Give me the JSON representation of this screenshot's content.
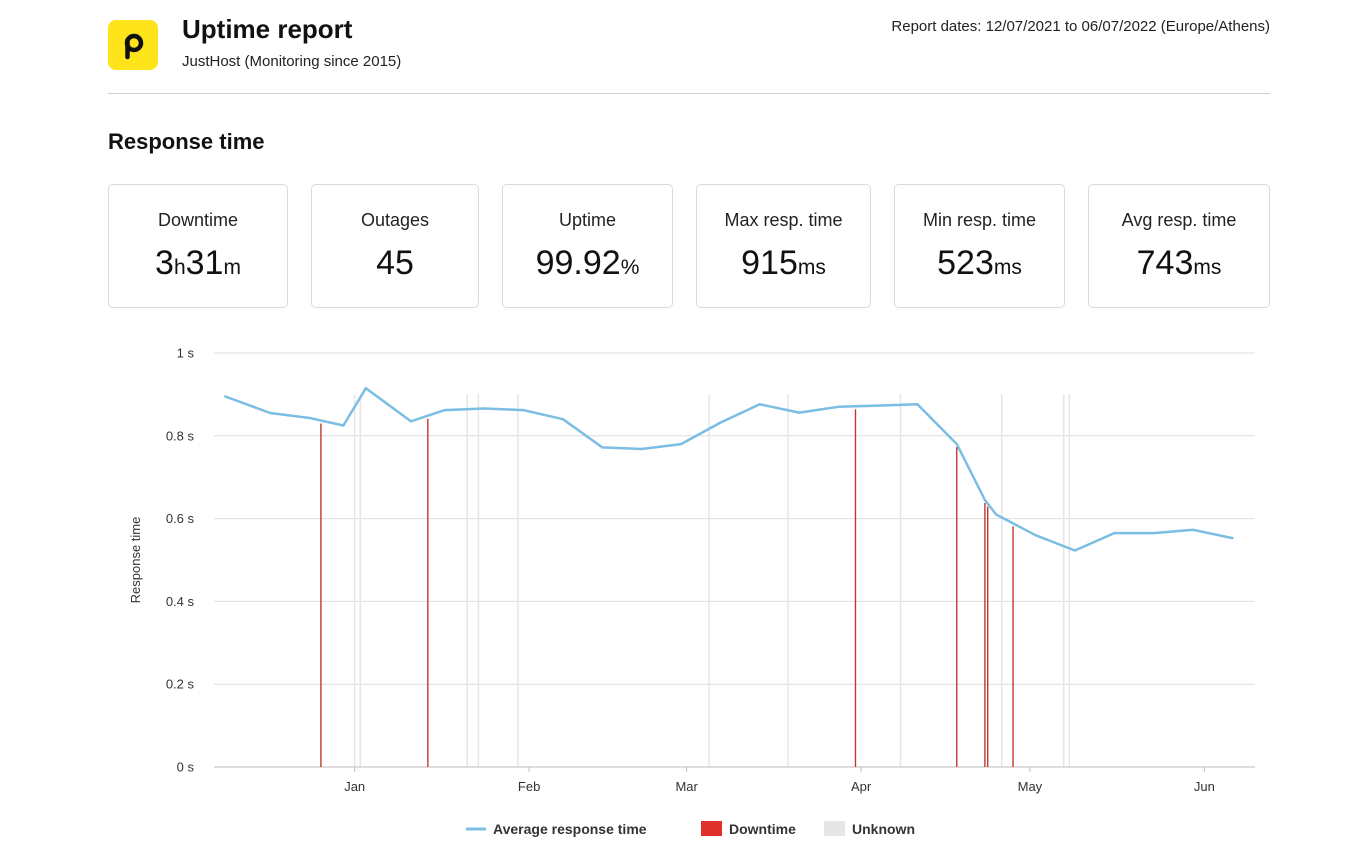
{
  "header": {
    "title": "Uptime report",
    "subtitle": "JustHost (Monitoring since 2015)",
    "report_dates": "Report dates: 12/07/2021 to 06/07/2022 (Europe/Athens)",
    "logo_letter": "p",
    "logo_color": "#ffe41c"
  },
  "section": {
    "title": "Response time"
  },
  "stats": [
    {
      "label": "Downtime",
      "value_parts": [
        [
          "3",
          "big"
        ],
        [
          "h",
          "unit"
        ],
        [
          "31",
          "big"
        ],
        [
          "m",
          "unit"
        ]
      ]
    },
    {
      "label": "Outages",
      "value_parts": [
        [
          "45",
          "big"
        ]
      ]
    },
    {
      "label": "Uptime",
      "value_parts": [
        [
          "99.92",
          "big"
        ],
        [
          "%",
          "unit"
        ]
      ]
    },
    {
      "label": "Max resp. time",
      "value_parts": [
        [
          "915",
          "big"
        ],
        [
          "ms",
          "unit"
        ]
      ]
    },
    {
      "label": "Min resp. time",
      "value_parts": [
        [
          "523",
          "big"
        ],
        [
          "ms",
          "unit"
        ]
      ]
    },
    {
      "label": "Avg resp. time",
      "value_parts": [
        [
          "743",
          "big"
        ],
        [
          "ms",
          "unit"
        ]
      ]
    }
  ],
  "chart_data": {
    "type": "line",
    "ylabel": "Response time",
    "ylim": [
      0,
      1
    ],
    "y_ticks": [
      {
        "value": 0,
        "label": "0 s"
      },
      {
        "value": 0.2,
        "label": "0.2 s"
      },
      {
        "value": 0.4,
        "label": "0.4 s"
      },
      {
        "value": 0.6,
        "label": "0.6 s"
      },
      {
        "value": 0.8,
        "label": "0.8 s"
      },
      {
        "value": 1.0,
        "label": "1 s"
      }
    ],
    "xlim": [
      "2021-12-07",
      "2022-06-10"
    ],
    "x_ticks": [
      {
        "date": "2022-01-01",
        "label": "Jan"
      },
      {
        "date": "2022-02-01",
        "label": "Feb"
      },
      {
        "date": "2022-03-01",
        "label": "Mar"
      },
      {
        "date": "2022-04-01",
        "label": "Apr"
      },
      {
        "date": "2022-05-01",
        "label": "May"
      },
      {
        "date": "2022-06-01",
        "label": "Jun"
      }
    ],
    "grid": true,
    "legend_position": "bottom-center",
    "series": [
      {
        "name": "Average response time",
        "color": "#7cbde3",
        "points": [
          [
            "2021-12-09",
            0.895
          ],
          [
            "2021-12-17",
            0.855
          ],
          [
            "2021-12-24",
            0.843
          ],
          [
            "2021-12-30",
            0.825
          ],
          [
            "2022-01-03",
            0.915
          ],
          [
            "2022-01-11",
            0.835
          ],
          [
            "2022-01-17",
            0.862
          ],
          [
            "2022-01-24",
            0.866
          ],
          [
            "2022-01-31",
            0.862
          ],
          [
            "2022-02-07",
            0.84
          ],
          [
            "2022-02-14",
            0.772
          ],
          [
            "2022-02-21",
            0.768
          ],
          [
            "2022-02-28",
            0.78
          ],
          [
            "2022-03-07",
            0.832
          ],
          [
            "2022-03-14",
            0.876
          ],
          [
            "2022-03-21",
            0.856
          ],
          [
            "2022-03-28",
            0.87
          ],
          [
            "2022-04-04",
            0.873
          ],
          [
            "2022-04-11",
            0.876
          ],
          [
            "2022-04-18",
            0.78
          ],
          [
            "2022-04-23",
            0.645
          ],
          [
            "2022-04-25",
            0.61
          ],
          [
            "2022-05-02",
            0.56
          ],
          [
            "2022-05-09",
            0.523
          ],
          [
            "2022-05-16",
            0.565
          ],
          [
            "2022-05-23",
            0.565
          ],
          [
            "2022-05-30",
            0.573
          ],
          [
            "2022-06-06",
            0.553
          ]
        ]
      }
    ],
    "downtime": {
      "name": "Downtime",
      "color": "#e0302b",
      "dates": [
        "2021-12-26",
        "2022-01-14",
        "2022-03-31",
        "2022-04-18",
        "2022-04-23",
        "2022-04-23T12",
        "2022-04-28"
      ]
    },
    "unknown": {
      "name": "Unknown",
      "color": "#e6e6e6",
      "dates": [
        "2022-01-01",
        "2022-01-02",
        "2022-01-21",
        "2022-01-23",
        "2022-01-30",
        "2022-03-05",
        "2022-03-19",
        "2022-04-08",
        "2022-04-26",
        "2022-05-07",
        "2022-05-08"
      ]
    }
  }
}
